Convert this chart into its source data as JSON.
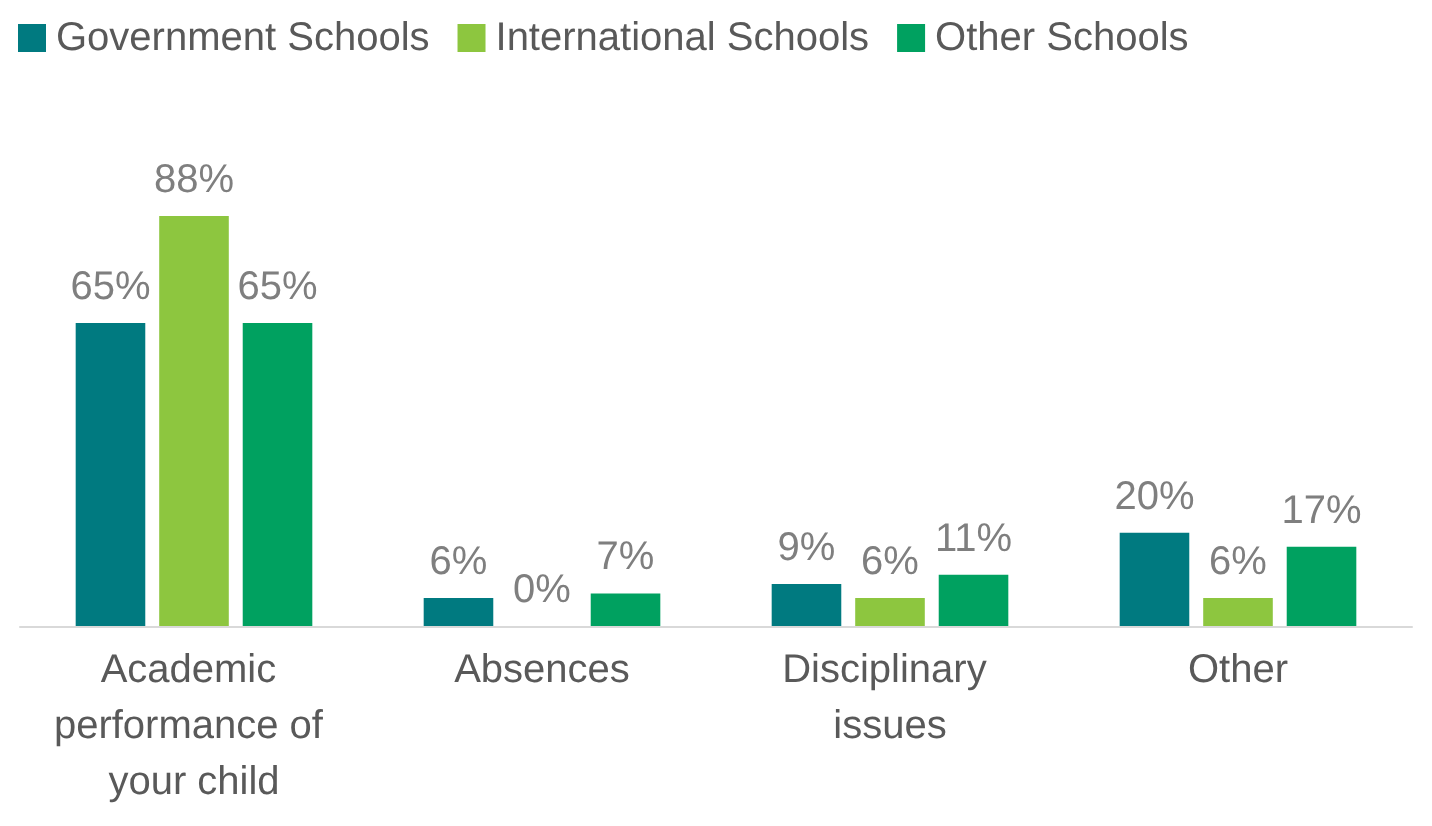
{
  "chart_data": {
    "type": "bar",
    "categories": [
      "Academic performance of your child",
      "Absences",
      "Disciplinary issues",
      "Other"
    ],
    "series": [
      {
        "name": "Government Schools",
        "color": "#007a80",
        "values": [
          65,
          6,
          9,
          20
        ],
        "value_labels": [
          "65%",
          "6%",
          "9%",
          "20%"
        ]
      },
      {
        "name": "International Schools",
        "color": "#8dc63f",
        "values": [
          88,
          0,
          6,
          6
        ],
        "value_labels": [
          "88%",
          "0%",
          "6%",
          "6%"
        ]
      },
      {
        "name": "Other Schools",
        "color": "#00a160",
        "values": [
          65,
          7,
          11,
          17
        ],
        "value_labels": [
          "65%",
          "7%",
          "11%",
          "17%"
        ]
      }
    ],
    "legend": "top left",
    "tick_labels": "x"
  }
}
